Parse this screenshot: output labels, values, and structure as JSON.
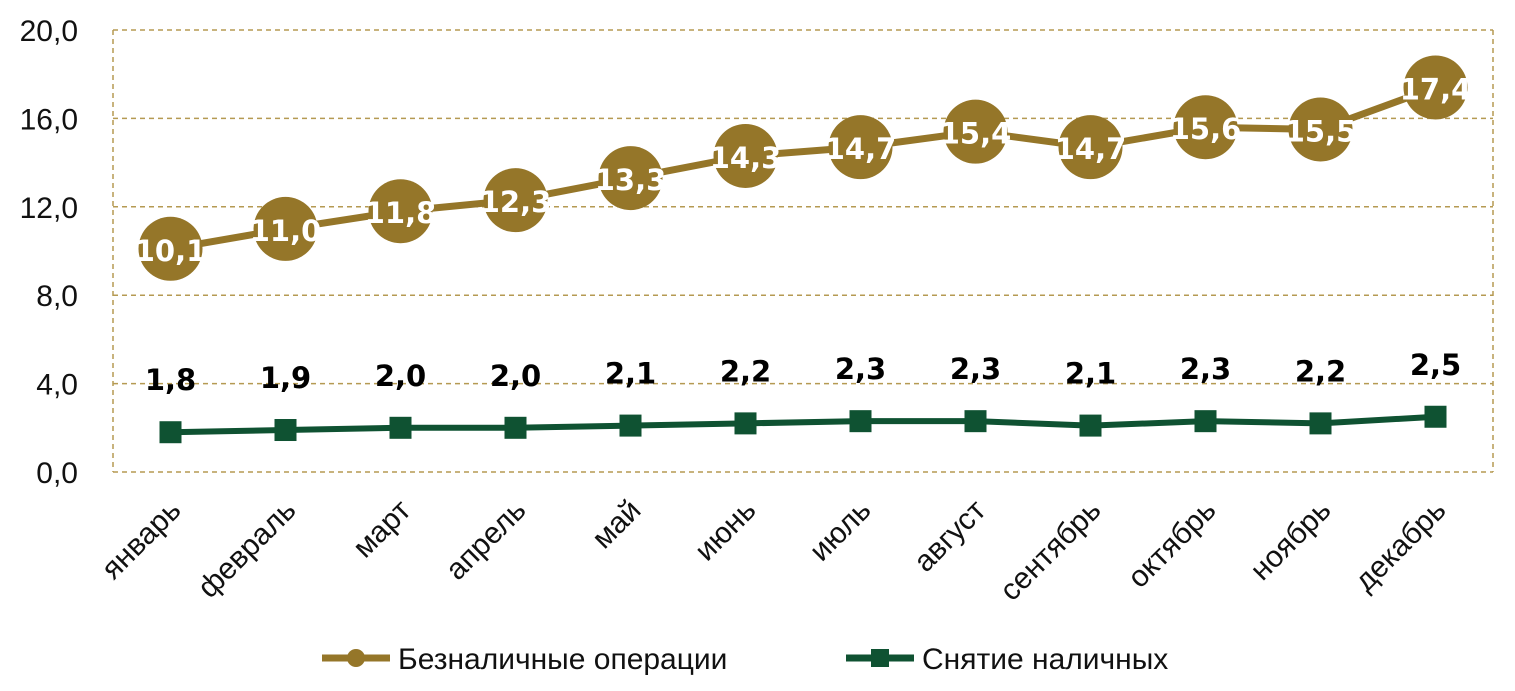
{
  "chart_data": {
    "type": "line",
    "title": "",
    "xlabel": "",
    "ylabel": "",
    "categories": [
      "январь",
      "февраль",
      "март",
      "апрель",
      "май",
      "июнь",
      "июль",
      "август",
      "сентябрь",
      "октябрь",
      "ноябрь",
      "декабрь"
    ],
    "y_ticks": [
      "0,0",
      "4,0",
      "8,0",
      "12,0",
      "16,0",
      "20,0"
    ],
    "ylim": [
      0,
      20
    ],
    "grid": true,
    "legend_position": "bottom",
    "series": [
      {
        "name": "Безналичные операции",
        "color": "#957629",
        "marker": "circle",
        "values": [
          10.1,
          11.0,
          11.8,
          12.3,
          13.3,
          14.3,
          14.7,
          15.4,
          14.7,
          15.6,
          15.5,
          17.4
        ],
        "labels": [
          "10,1",
          "11,0",
          "11,8",
          "12,3",
          "13,3",
          "14,3",
          "14,7",
          "15,4",
          "14,7",
          "15,6",
          "15,5",
          "17,4"
        ]
      },
      {
        "name": "Снятие наличных",
        "color": "#0f5232",
        "marker": "square",
        "values": [
          1.8,
          1.9,
          2.0,
          2.0,
          2.1,
          2.2,
          2.3,
          2.3,
          2.1,
          2.3,
          2.2,
          2.5
        ],
        "labels": [
          "1,8",
          "1,9",
          "2,0",
          "2,0",
          "2,1",
          "2,2",
          "2,3",
          "2,3",
          "2,1",
          "2,3",
          "2,2",
          "2,5"
        ]
      }
    ]
  }
}
